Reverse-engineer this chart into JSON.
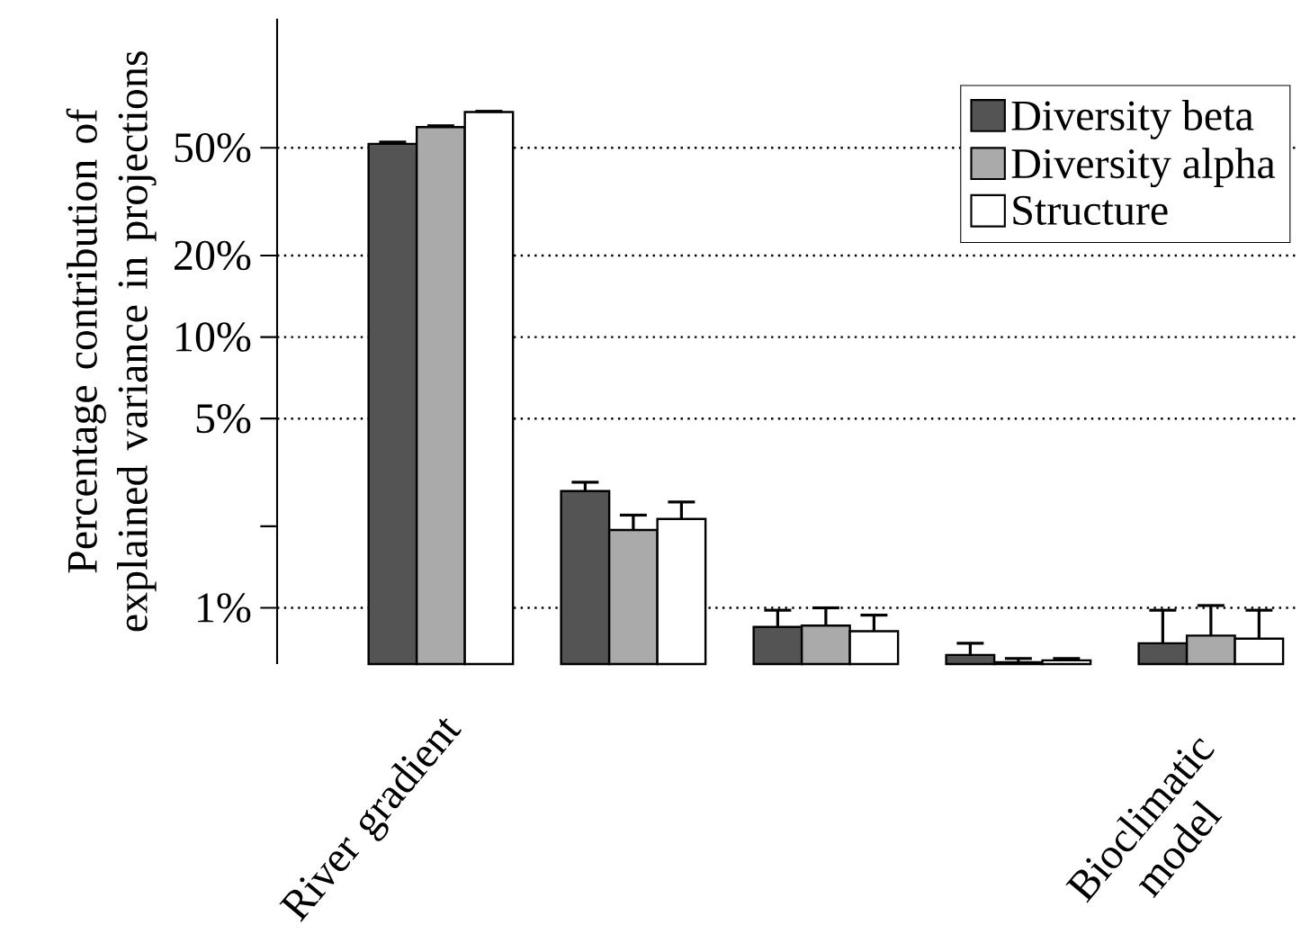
{
  "chart_data": {
    "type": "bar",
    "ylabel": "Percentage contribution of explained variance in projections",
    "categories": [
      "River gradient",
      null,
      null,
      null,
      "Bioclimatic model"
    ],
    "series": [
      {
        "name": "Diversity beta",
        "color": "#545454",
        "values": [
          51.7,
          2.7,
          0.85,
          0.67,
          0.74
        ],
        "errors": [
          [
            51.7,
            52.5
          ],
          [
            2.7,
            2.91
          ],
          [
            0.85,
            0.98
          ],
          [
            0.67,
            0.74
          ],
          [
            0.74,
            0.98
          ]
        ]
      },
      {
        "name": "Diversity alpha",
        "color": "#aaaaaa",
        "values": [
          59.6,
          1.94,
          0.86,
          0.63,
          0.79
        ],
        "errors": [
          [
            59.6,
            60.3
          ],
          [
            1.94,
            2.2
          ],
          [
            0.86,
            1.0
          ],
          [
            0.63,
            0.65
          ],
          [
            0.79,
            1.02
          ]
        ]
      },
      {
        "name": "Structure",
        "color": "#ffffff",
        "values": [
          67.8,
          2.13,
          0.82,
          0.64,
          0.77
        ],
        "errors": [
          [
            67.8,
            68.2
          ],
          [
            2.13,
            2.46
          ],
          [
            0.82,
            0.94
          ],
          [
            0.64,
            0.65
          ],
          [
            0.77,
            0.98
          ]
        ]
      }
    ],
    "ylim": [
      0.62,
      150
    ],
    "log": true,
    "grid": "y",
    "yticks": [
      {
        "value": 1,
        "label": "1%"
      },
      {
        "value": 2,
        "label": null
      },
      {
        "value": 5,
        "label": "5%"
      },
      {
        "value": 10,
        "label": "10%"
      },
      {
        "value": 20,
        "label": "20%"
      },
      {
        "value": 50,
        "label": "50%"
      }
    ],
    "legend": "top right"
  }
}
